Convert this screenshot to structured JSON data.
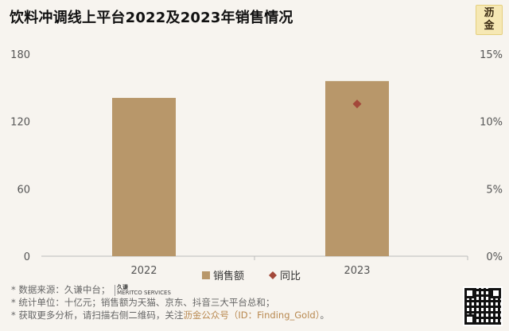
{
  "title": "饮料冲调线上平台2022及2023年销售情况",
  "logo": {
    "line1": "沥",
    "line2": "金"
  },
  "colors": {
    "bar": "#b8976a",
    "marker": "#a3483a",
    "background": "#f7f4ef"
  },
  "chart_data": {
    "type": "bar",
    "categories": [
      "2022",
      "2023"
    ],
    "series": [
      {
        "name": "销售额",
        "type": "bar",
        "axis": "left",
        "values": [
          141,
          156
        ]
      },
      {
        "name": "同比",
        "type": "scatter",
        "axis": "right",
        "marker": "diamond",
        "values": [
          null,
          11.3
        ]
      }
    ],
    "left_axis": {
      "ticks": [
        "0",
        "60",
        "120",
        "180"
      ],
      "range": [
        0,
        180
      ]
    },
    "right_axis": {
      "ticks": [
        "0%",
        "5%",
        "10%",
        "15%"
      ],
      "range": [
        0,
        15
      ]
    },
    "legend_position": "bottom",
    "grid": false
  },
  "footnotes": {
    "line1": "* 数据来源：久谦中台；",
    "line1_logo_cn": "久谦",
    "line1_logo_en": "MERITCO SERVICES",
    "line2": "* 统计单位：十亿元；销售额为天猫、京东、抖音三大平台总和；",
    "line3_prefix": "* 获取更多分析，请扫描右侧二维码，关注",
    "line3_brand": "沥金公众号（ID：Finding_Gold）",
    "line3_suffix": "。"
  }
}
